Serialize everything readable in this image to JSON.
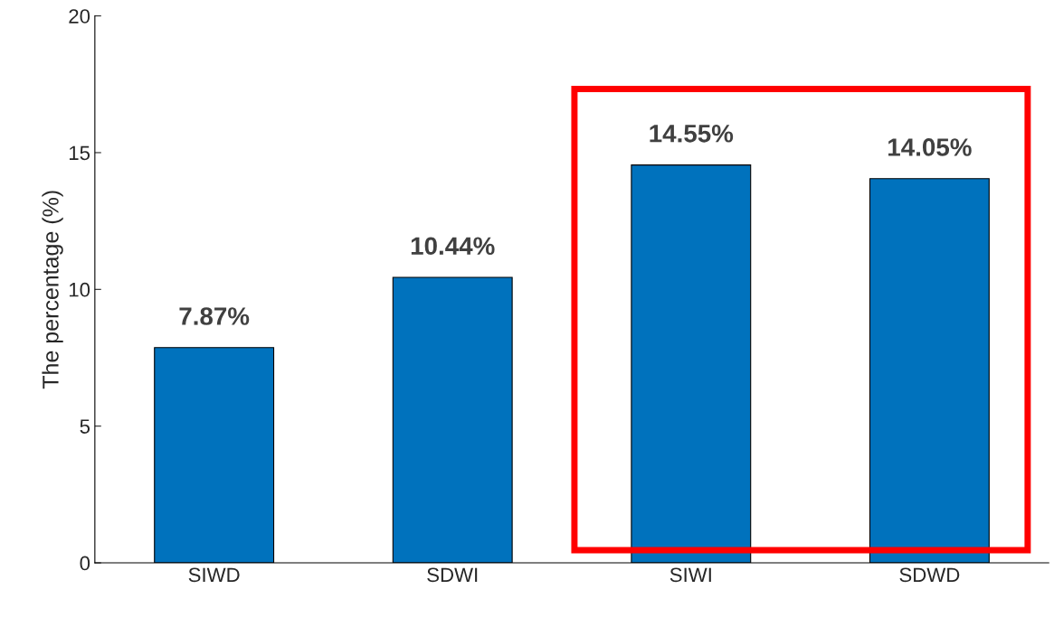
{
  "chart_data": {
    "type": "bar",
    "ylabel": "The percentage (%)",
    "categories": [
      "SIWD",
      "SDWI",
      "SIWI",
      "SDWD"
    ],
    "values": [
      7.87,
      10.44,
      14.55,
      14.05
    ],
    "value_labels": [
      "7.87%",
      "10.44%",
      "14.55%",
      "14.05%"
    ],
    "color": "#0072bd",
    "ylim": [
      0,
      20
    ],
    "yticks": [
      0,
      5,
      10,
      15,
      20
    ],
    "grid": false,
    "legend": false
  }
}
